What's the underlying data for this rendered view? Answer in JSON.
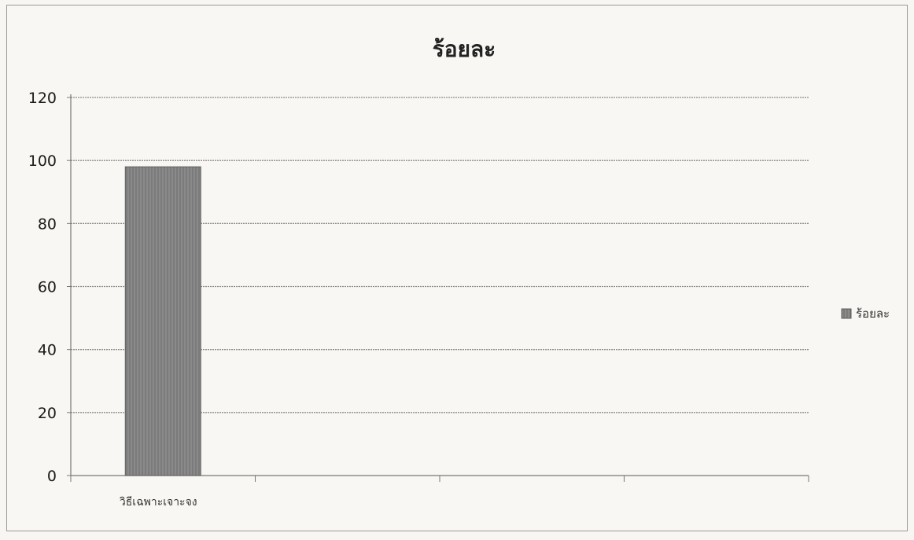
{
  "chart_data": {
    "type": "bar",
    "title": "ร้อยละ",
    "categories": [
      "วิธีเฉพาะเจาะจง",
      "",
      "",
      ""
    ],
    "series": [
      {
        "name": "ร้อยละ",
        "values": [
          98,
          null,
          null,
          null
        ]
      }
    ],
    "ylim": [
      0,
      120
    ],
    "yticks": [
      0,
      20,
      40,
      60,
      80,
      100,
      120
    ],
    "grid": true,
    "legend_position": "right",
    "bar_color": "#8a8a8a"
  }
}
